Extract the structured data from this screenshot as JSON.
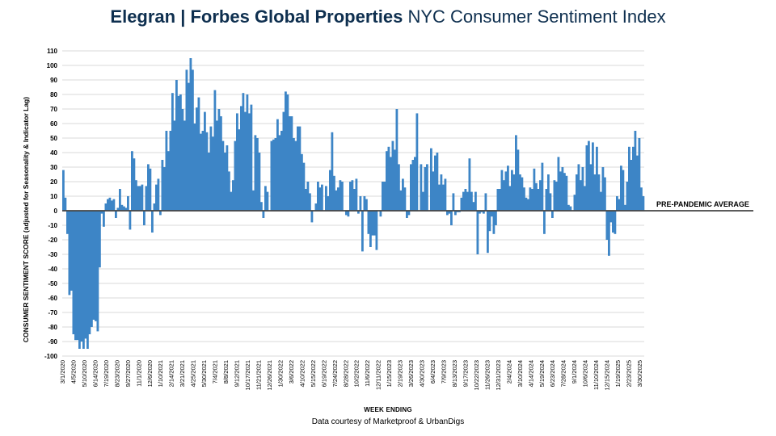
{
  "header": {
    "title_brand": "Elegran | Forbes Global Properties",
    "title_rest": " NYC Consumer Sentiment Index"
  },
  "footer": {
    "credit": "Data courtesy of Marketproof & UrbanDigs"
  },
  "colors": {
    "bar": "#3d85c6",
    "avg_line": "#444444",
    "grid": "#d9d9d9",
    "title": "#0e2f4f"
  },
  "chart_data": {
    "type": "bar",
    "title": "Elegran | Forbes Global Properties NYC Consumer Sentiment Index",
    "xlabel": "WEEK ENDING",
    "ylabel": "CONSUMER SENTIMENT SCORE (adjusted for Seasonality & Indicator Lag)",
    "ylim": [
      -100,
      110
    ],
    "yticks": [
      110,
      100,
      90,
      80,
      70,
      60,
      50,
      40,
      30,
      20,
      10,
      0,
      -10,
      -20,
      -30,
      -40,
      -50,
      -60,
      -70,
      -80,
      -90,
      -100
    ],
    "grid": true,
    "reference_line": {
      "value": 0,
      "label": "PRE-PANDEMIC AVERAGE"
    },
    "x_tick_labels": [
      "3/1/2020",
      "4/5/2020",
      "5/10/2020",
      "6/14/2020",
      "7/19/2020",
      "8/23/2020",
      "9/27/2020",
      "11/1/2020",
      "12/6/2020",
      "1/10/2021",
      "2/14/2021",
      "3/21/2021",
      "4/25/2021",
      "5/30/2021",
      "7/4/2021",
      "8/8/2021",
      "9/12/2021",
      "10/17/2021",
      "11/21/2021",
      "12/26/2021",
      "1/30/2022",
      "3/6/2022",
      "4/10/2022",
      "5/15/2022",
      "6/19/2022",
      "7/24/2022",
      "8/28/2022",
      "10/2/2022",
      "11/6/2022",
      "12/11/2022",
      "1/15/2023",
      "2/19/2023",
      "3/26/2023",
      "4/30/2023",
      "6/4/2023",
      "7/9/2023",
      "8/13/2023",
      "9/17/2023",
      "10/22/2023",
      "11/26/2023",
      "12/31/2023",
      "2/4/2024",
      "3/10/2024",
      "4/14/2024",
      "5/19/2024",
      "6/23/2024",
      "7/28/2024",
      "9/1/2024",
      "10/6/2024",
      "11/10/2024",
      "12/15/2024",
      "1/19/2025",
      "2/23/2025",
      "3/30/2025"
    ],
    "values": [
      28,
      9,
      -16,
      -58,
      -55,
      -85,
      -89,
      -89,
      -95,
      -90,
      -95,
      -88,
      -95,
      -85,
      -80,
      -75,
      -76,
      -83,
      -39,
      -2,
      -11,
      5,
      8,
      9,
      7,
      8,
      -5,
      2,
      15,
      4,
      3,
      2,
      10,
      -13,
      41,
      36,
      21,
      17,
      17,
      18,
      -10,
      17,
      32,
      29,
      -15,
      5,
      18,
      22,
      -3,
      35,
      30,
      55,
      41,
      55,
      81,
      62,
      90,
      79,
      80,
      70,
      62,
      97,
      88,
      105,
      97,
      60,
      71,
      78,
      53,
      55,
      68,
      54,
      40,
      58,
      51,
      83,
      62,
      70,
      65,
      48,
      40,
      45,
      27,
      13,
      21,
      48,
      67,
      56,
      72,
      81,
      68,
      80,
      67,
      73,
      14,
      52,
      50,
      40,
      6,
      -5,
      17,
      13,
      0,
      48,
      49,
      50,
      63,
      52,
      55,
      68,
      82,
      80,
      65,
      65,
      50,
      48,
      58,
      58,
      39,
      33,
      15,
      20,
      12,
      -8,
      0,
      5,
      20,
      16,
      18,
      0,
      17,
      10,
      28,
      54,
      24,
      14,
      16,
      21,
      20,
      0,
      -3,
      -4,
      20,
      21,
      15,
      22,
      -2,
      10,
      -28,
      10,
      8,
      -16,
      -25,
      -17,
      -17,
      -27,
      0,
      -4,
      20,
      20,
      41,
      44,
      37,
      48,
      42,
      70,
      32,
      14,
      22,
      16,
      -5,
      -3,
      32,
      35,
      37,
      67,
      0,
      32,
      13,
      30,
      32,
      0,
      43,
      27,
      38,
      40,
      18,
      25,
      18,
      22,
      -3,
      -2,
      -10,
      12,
      -3,
      -1,
      -1,
      9,
      13,
      15,
      13,
      36,
      13,
      6,
      13,
      -30,
      -2,
      -1,
      -2,
      12,
      -29,
      -14,
      -4,
      -16,
      -10,
      15,
      15,
      28,
      21,
      27,
      31,
      17,
      28,
      25,
      52,
      42,
      25,
      23,
      16,
      9,
      8,
      16,
      15,
      29,
      19,
      15,
      21,
      33,
      -16,
      15,
      25,
      12,
      -5,
      21,
      20,
      37,
      27,
      30,
      26,
      24,
      4,
      3,
      0,
      11,
      25,
      32,
      21,
      30,
      17,
      45,
      48,
      32,
      47,
      25,
      44,
      25,
      13,
      30,
      23,
      -20,
      -31,
      -8,
      -15,
      -16,
      10,
      8,
      31,
      28,
      4,
      20,
      44,
      35,
      44,
      55,
      38,
      50,
      16,
      10
    ]
  }
}
